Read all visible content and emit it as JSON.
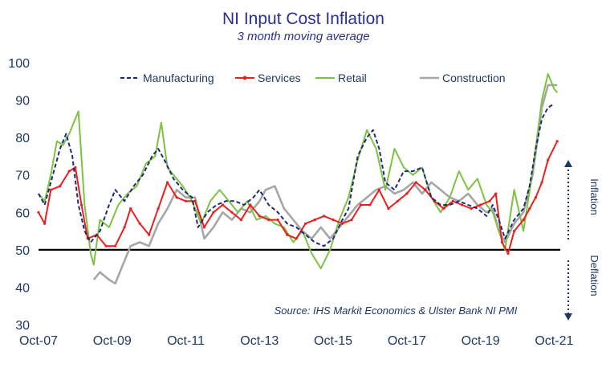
{
  "chart_data": {
    "type": "line",
    "title": "NI Input Cost Inflation",
    "subtitle": "3 month moving average",
    "source": "Source: IHS Markit Economics & Ulster Bank NI PMI",
    "xlabel": "",
    "ylabel": "",
    "ylim": [
      30,
      100
    ],
    "yticks": [
      30,
      40,
      50,
      60,
      70,
      80,
      90,
      100
    ],
    "xlim": [
      "2007-10",
      "2021-12"
    ],
    "xtick_labels": [
      "Oct-07",
      "Oct-09",
      "Oct-11",
      "Oct-13",
      "Oct-15",
      "Oct-17",
      "Oct-19",
      "Oct-21"
    ],
    "reference_line": 50,
    "grid": false,
    "legend_position": "top",
    "side_labels": {
      "up": "Inflation",
      "down": "Deflation"
    },
    "series": [
      {
        "name": "Manufacturing",
        "color": "#1f2a7a",
        "style": "dashed",
        "points": [
          [
            "2007-10",
            65
          ],
          [
            "2007-12",
            62
          ],
          [
            "2008-02",
            68
          ],
          [
            "2008-05",
            77
          ],
          [
            "2008-07",
            81
          ],
          [
            "2008-09",
            75
          ],
          [
            "2008-11",
            62
          ],
          [
            "2009-01",
            55
          ],
          [
            "2009-03",
            52
          ],
          [
            "2009-06",
            55
          ],
          [
            "2009-09",
            62
          ],
          [
            "2009-11",
            66
          ],
          [
            "2010-02",
            63
          ],
          [
            "2010-05",
            67
          ],
          [
            "2010-08",
            70
          ],
          [
            "2010-11",
            75
          ],
          [
            "2011-01",
            77
          ],
          [
            "2011-03",
            74
          ],
          [
            "2011-06",
            69
          ],
          [
            "2011-09",
            66
          ],
          [
            "2011-12",
            64
          ],
          [
            "2012-02",
            56
          ],
          [
            "2012-05",
            60
          ],
          [
            "2012-08",
            62
          ],
          [
            "2012-11",
            63
          ],
          [
            "2013-02",
            63
          ],
          [
            "2013-05",
            62
          ],
          [
            "2013-08",
            64
          ],
          [
            "2013-10",
            66
          ],
          [
            "2014-01",
            62
          ],
          [
            "2014-04",
            60
          ],
          [
            "2014-07",
            57
          ],
          [
            "2014-10",
            56
          ],
          [
            "2015-01",
            54
          ],
          [
            "2015-04",
            52
          ],
          [
            "2015-07",
            51
          ],
          [
            "2015-10",
            53
          ],
          [
            "2016-01",
            58
          ],
          [
            "2016-03",
            61
          ],
          [
            "2016-06",
            75
          ],
          [
            "2016-09",
            80
          ],
          [
            "2016-11",
            82
          ],
          [
            "2017-01",
            77
          ],
          [
            "2017-03",
            68
          ],
          [
            "2017-06",
            66
          ],
          [
            "2017-09",
            71
          ],
          [
            "2017-12",
            71
          ],
          [
            "2018-03",
            72
          ],
          [
            "2018-06",
            64
          ],
          [
            "2018-09",
            62
          ],
          [
            "2018-12",
            62
          ],
          [
            "2019-03",
            63
          ],
          [
            "2019-06",
            62
          ],
          [
            "2019-09",
            61
          ],
          [
            "2019-12",
            59
          ],
          [
            "2020-02",
            62
          ],
          [
            "2020-04",
            58
          ],
          [
            "2020-06",
            53
          ],
          [
            "2020-09",
            58
          ],
          [
            "2020-12",
            61
          ],
          [
            "2021-02",
            67
          ],
          [
            "2021-04",
            77
          ],
          [
            "2021-06",
            85
          ],
          [
            "2021-08",
            88
          ],
          [
            "2021-10",
            89
          ]
        ]
      },
      {
        "name": "Services",
        "color": "#e8201f",
        "style": "solid",
        "points": [
          [
            "2007-10",
            60
          ],
          [
            "2007-12",
            57
          ],
          [
            "2008-02",
            66
          ],
          [
            "2008-05",
            67
          ],
          [
            "2008-08",
            71
          ],
          [
            "2008-10",
            72
          ],
          [
            "2008-12",
            62
          ],
          [
            "2009-02",
            53
          ],
          [
            "2009-05",
            54
          ],
          [
            "2009-08",
            51
          ],
          [
            "2009-11",
            51
          ],
          [
            "2010-02",
            56
          ],
          [
            "2010-04",
            61
          ],
          [
            "2010-07",
            57
          ],
          [
            "2010-10",
            54
          ],
          [
            "2011-01",
            61
          ],
          [
            "2011-04",
            68
          ],
          [
            "2011-07",
            64
          ],
          [
            "2011-10",
            63
          ],
          [
            "2012-01",
            63
          ],
          [
            "2012-04",
            56
          ],
          [
            "2012-07",
            60
          ],
          [
            "2012-10",
            62
          ],
          [
            "2013-01",
            60
          ],
          [
            "2013-04",
            58
          ],
          [
            "2013-07",
            62
          ],
          [
            "2013-10",
            59
          ],
          [
            "2014-01",
            58
          ],
          [
            "2014-04",
            58
          ],
          [
            "2014-07",
            54
          ],
          [
            "2014-10",
            53
          ],
          [
            "2015-01",
            57
          ],
          [
            "2015-04",
            58
          ],
          [
            "2015-07",
            59
          ],
          [
            "2015-10",
            58
          ],
          [
            "2016-01",
            57
          ],
          [
            "2016-04",
            58
          ],
          [
            "2016-07",
            62
          ],
          [
            "2016-10",
            62
          ],
          [
            "2017-01",
            66
          ],
          [
            "2017-04",
            61
          ],
          [
            "2017-07",
            63
          ],
          [
            "2017-10",
            65
          ],
          [
            "2018-01",
            68
          ],
          [
            "2018-04",
            66
          ],
          [
            "2018-07",
            63
          ],
          [
            "2018-10",
            61
          ],
          [
            "2019-01",
            63
          ],
          [
            "2019-04",
            62
          ],
          [
            "2019-07",
            61
          ],
          [
            "2019-10",
            62
          ],
          [
            "2020-01",
            63
          ],
          [
            "2020-03",
            65
          ],
          [
            "2020-05",
            52
          ],
          [
            "2020-07",
            49
          ],
          [
            "2020-09",
            55
          ],
          [
            "2020-12",
            58
          ],
          [
            "2021-02",
            61
          ],
          [
            "2021-04",
            64
          ],
          [
            "2021-06",
            68
          ],
          [
            "2021-08",
            74
          ],
          [
            "2021-11",
            79
          ]
        ]
      },
      {
        "name": "Retail",
        "color": "#7dc243",
        "style": "solid",
        "points": [
          [
            "2007-10",
            65
          ],
          [
            "2007-12",
            63
          ],
          [
            "2008-02",
            70
          ],
          [
            "2008-04",
            79
          ],
          [
            "2008-06",
            78
          ],
          [
            "2008-08",
            81
          ],
          [
            "2008-11",
            87
          ],
          [
            "2009-01",
            62
          ],
          [
            "2009-03",
            49
          ],
          [
            "2009-04",
            46
          ],
          [
            "2009-06",
            58
          ],
          [
            "2009-09",
            56
          ],
          [
            "2009-12",
            62
          ],
          [
            "2010-03",
            65
          ],
          [
            "2010-06",
            67
          ],
          [
            "2010-09",
            73
          ],
          [
            "2010-12",
            75
          ],
          [
            "2011-02",
            84
          ],
          [
            "2011-04",
            72
          ],
          [
            "2011-06",
            70
          ],
          [
            "2011-09",
            67
          ],
          [
            "2011-12",
            63
          ],
          [
            "2012-03",
            57
          ],
          [
            "2012-06",
            63
          ],
          [
            "2012-09",
            66
          ],
          [
            "2012-12",
            63
          ],
          [
            "2013-03",
            60
          ],
          [
            "2013-06",
            63
          ],
          [
            "2013-09",
            58
          ],
          [
            "2013-12",
            59
          ],
          [
            "2014-03",
            57
          ],
          [
            "2014-06",
            56
          ],
          [
            "2014-09",
            52
          ],
          [
            "2014-12",
            55
          ],
          [
            "2015-03",
            49
          ],
          [
            "2015-06",
            45
          ],
          [
            "2015-09",
            50
          ],
          [
            "2015-12",
            58
          ],
          [
            "2016-03",
            64
          ],
          [
            "2016-06",
            74
          ],
          [
            "2016-09",
            82
          ],
          [
            "2016-12",
            77
          ],
          [
            "2017-03",
            66
          ],
          [
            "2017-06",
            77
          ],
          [
            "2017-09",
            72
          ],
          [
            "2017-12",
            70
          ],
          [
            "2018-03",
            72
          ],
          [
            "2018-06",
            64
          ],
          [
            "2018-09",
            60
          ],
          [
            "2018-12",
            64
          ],
          [
            "2019-03",
            71
          ],
          [
            "2019-06",
            66
          ],
          [
            "2019-09",
            69
          ],
          [
            "2019-12",
            62
          ],
          [
            "2020-02",
            60
          ],
          [
            "2020-04",
            55
          ],
          [
            "2020-06",
            50
          ],
          [
            "2020-09",
            66
          ],
          [
            "2020-12",
            55
          ],
          [
            "2021-03",
            71
          ],
          [
            "2021-06",
            90
          ],
          [
            "2021-08",
            97
          ],
          [
            "2021-10",
            93
          ],
          [
            "2021-11",
            92
          ]
        ]
      },
      {
        "name": "Construction",
        "color": "#a6a6a6",
        "style": "solid",
        "points": [
          [
            "2009-04",
            42
          ],
          [
            "2009-06",
            44
          ],
          [
            "2009-09",
            42
          ],
          [
            "2009-11",
            41
          ],
          [
            "2010-01",
            45
          ],
          [
            "2010-04",
            51
          ],
          [
            "2010-07",
            52
          ],
          [
            "2010-10",
            51
          ],
          [
            "2011-01",
            57
          ],
          [
            "2011-04",
            61
          ],
          [
            "2011-07",
            66
          ],
          [
            "2011-10",
            64
          ],
          [
            "2012-01",
            64
          ],
          [
            "2012-04",
            53
          ],
          [
            "2012-07",
            56
          ],
          [
            "2012-10",
            60
          ],
          [
            "2013-01",
            58
          ],
          [
            "2013-04",
            61
          ],
          [
            "2013-07",
            60
          ],
          [
            "2013-10",
            63
          ],
          [
            "2013-12",
            66
          ],
          [
            "2014-03",
            67
          ],
          [
            "2014-06",
            61
          ],
          [
            "2014-09",
            58
          ],
          [
            "2014-12",
            55
          ],
          [
            "2015-03",
            53
          ],
          [
            "2015-06",
            56
          ],
          [
            "2015-09",
            53
          ],
          [
            "2015-12",
            56
          ],
          [
            "2016-03",
            59
          ],
          [
            "2016-06",
            62
          ],
          [
            "2016-09",
            64
          ],
          [
            "2016-12",
            66
          ],
          [
            "2017-03",
            67
          ],
          [
            "2017-06",
            65
          ],
          [
            "2017-09",
            66
          ],
          [
            "2017-12",
            68
          ],
          [
            "2018-03",
            65
          ],
          [
            "2018-06",
            68
          ],
          [
            "2018-09",
            66
          ],
          [
            "2018-12",
            64
          ],
          [
            "2019-03",
            63
          ],
          [
            "2019-06",
            65
          ],
          [
            "2019-09",
            62
          ],
          [
            "2019-12",
            60
          ],
          [
            "2020-02",
            61
          ],
          [
            "2020-04",
            55
          ],
          [
            "2020-06",
            52
          ],
          [
            "2020-09",
            57
          ],
          [
            "2020-12",
            60
          ],
          [
            "2021-03",
            70
          ],
          [
            "2021-06",
            88
          ],
          [
            "2021-08",
            94
          ],
          [
            "2021-10",
            94
          ],
          [
            "2021-11",
            94
          ]
        ]
      }
    ]
  }
}
